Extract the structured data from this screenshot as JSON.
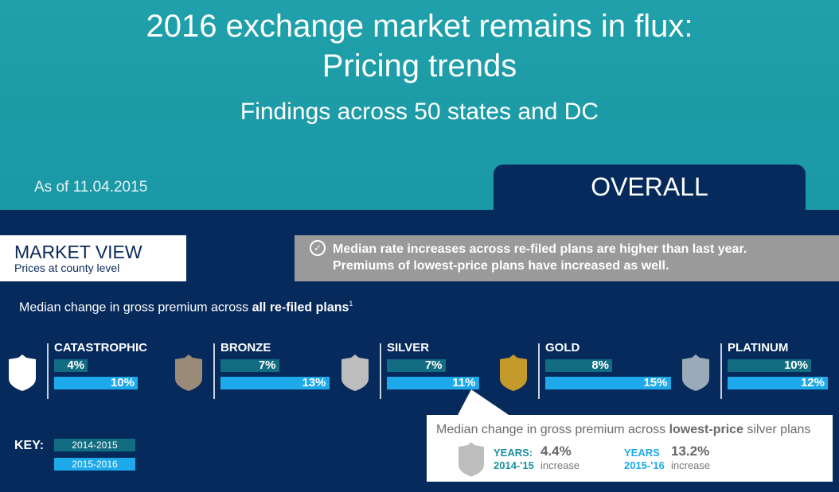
{
  "header": {
    "title_line1": "2016 exchange market remains in flux:",
    "title_line2": "Pricing trends",
    "subtitle": "Findings across 50 states and DC",
    "as_of": "As of 11.04.2015",
    "tab": "OVERALL"
  },
  "market_view": {
    "title_bold": "MARKET",
    "title_rest": " VIEW",
    "subtitle": "Prices at county level"
  },
  "note": {
    "line1": "Median rate increases across re-filed plans are higher than last year.",
    "line2": "Premiums of lowest-price plans have increased as well."
  },
  "lead": {
    "text": "Median change in gross premium across ",
    "bold": "all re-filed plans",
    "sup": "1"
  },
  "colors": {
    "top": "#1fa0aa",
    "navy": "#062a5c",
    "2014-2015": "#126c82",
    "2015-2016": "#1ea9ea"
  },
  "chart_data": {
    "type": "bar",
    "categories": [
      "CATASTROPHIC",
      "BRONZE",
      "SILVER",
      "GOLD",
      "PLATINUM"
    ],
    "shield_colors": [
      "#ffffff",
      "#9a8a78",
      "#bdbdbd",
      "#c49a2a",
      "#9aaab8"
    ],
    "series": [
      {
        "name": "2014-2015",
        "values": [
          4,
          7,
          7,
          8,
          10
        ],
        "labels": [
          "4%",
          "7%",
          "7%",
          "8%",
          "10%"
        ]
      },
      {
        "name": "2015-2016",
        "values": [
          10,
          13,
          11,
          15,
          12
        ],
        "labels": [
          "10%",
          "13%",
          "11%",
          "15%",
          "12%"
        ]
      }
    ]
  },
  "key": {
    "label": "KEY:",
    "items": [
      "2014-2015",
      "2015-2016"
    ]
  },
  "callout": {
    "text": "Median change in gross premium across ",
    "bold": "lowest-price",
    "rest": " silver plans",
    "items": [
      {
        "years": "YEARS:",
        "period": "2014-'15",
        "value": "4.4%",
        "unit": "increase"
      },
      {
        "years": "YEARS",
        "period": "2015-'16",
        "value": "13.2%",
        "unit": "increase"
      }
    ]
  }
}
